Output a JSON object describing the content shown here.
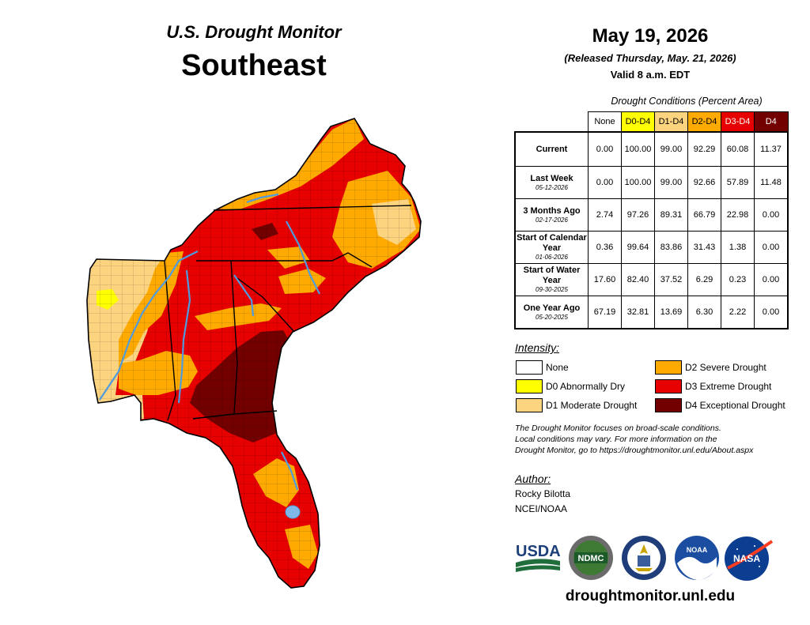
{
  "header": {
    "product_title": "U.S. Drought Monitor",
    "region": "Southeast",
    "date": "May 19, 2026",
    "release_note": "(Released Thursday, May. 21, 2026)",
    "valid_time": "Valid 8 a.m. EDT"
  },
  "table": {
    "caption": "Drought Conditions (Percent Area)",
    "columns": [
      "None",
      "D0-D4",
      "D1-D4",
      "D2-D4",
      "D3-D4",
      "D4"
    ],
    "column_colors": [
      "#ffffff",
      "#ffff00",
      "#fcd37f",
      "#ffaa00",
      "#e60000",
      "#730000"
    ],
    "rows": [
      {
        "label": "Current",
        "date": "",
        "values": [
          "0.00",
          "100.00",
          "99.00",
          "92.29",
          "60.08",
          "11.37"
        ]
      },
      {
        "label": "Last Week",
        "date": "05-12-2026",
        "values": [
          "0.00",
          "100.00",
          "99.00",
          "92.66",
          "57.89",
          "11.48"
        ]
      },
      {
        "label": "3 Months Ago",
        "date": "02-17-2026",
        "values": [
          "2.74",
          "97.26",
          "89.31",
          "66.79",
          "22.98",
          "0.00"
        ]
      },
      {
        "label": "Start of Calendar Year",
        "date": "01-06-2026",
        "values": [
          "0.36",
          "99.64",
          "83.86",
          "31.43",
          "1.38",
          "0.00"
        ]
      },
      {
        "label": "Start of Water Year",
        "date": "09-30-2025",
        "values": [
          "17.60",
          "82.40",
          "37.52",
          "6.29",
          "0.23",
          "0.00"
        ]
      },
      {
        "label": "One Year Ago",
        "date": "05-20-2025",
        "values": [
          "67.19",
          "32.81",
          "13.69",
          "6.30",
          "2.22",
          "0.00"
        ]
      }
    ]
  },
  "legend": {
    "title": "Intensity:",
    "items": [
      {
        "label": "None",
        "color": "#ffffff"
      },
      {
        "label": "D0 Abnormally Dry",
        "color": "#ffff00"
      },
      {
        "label": "D1 Moderate Drought",
        "color": "#fcd37f"
      },
      {
        "label": "D2 Severe Drought",
        "color": "#ffaa00"
      },
      {
        "label": "D3 Extreme Drought",
        "color": "#e60000"
      },
      {
        "label": "D4 Exceptional Drought",
        "color": "#730000"
      }
    ]
  },
  "disclaimer": {
    "line1": "The Drought Monitor focuses on broad-scale conditions.",
    "line2": "Local conditions may vary. For more information on the",
    "line3": "Drought Monitor, go to https://droughtmonitor.unl.edu/About.aspx"
  },
  "author": {
    "title": "Author:",
    "name": "Rocky Bilotta",
    "org": "NCEI/NOAA"
  },
  "logos": {
    "usda": "USDA",
    "ndmc": "NDMC",
    "noaa": "NOAA",
    "nasa": "NASA"
  },
  "footer": {
    "website": "droughtmonitor.unl.edu"
  }
}
